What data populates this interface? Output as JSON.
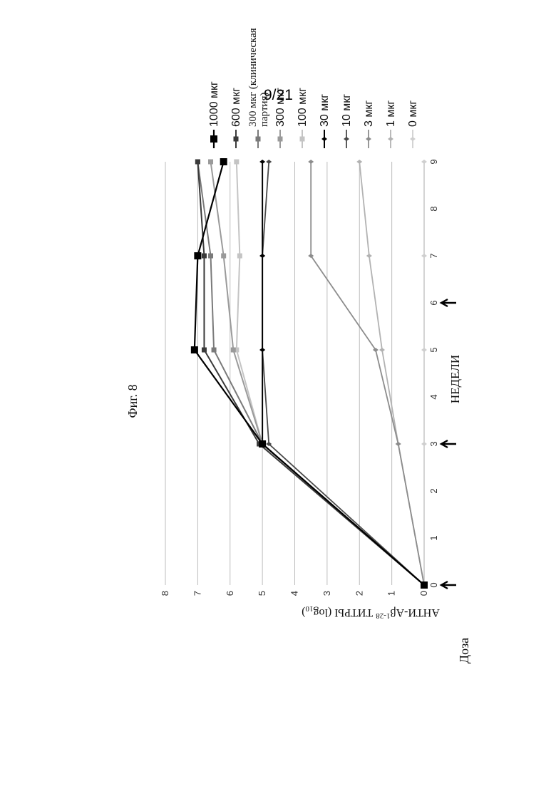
{
  "page": {
    "number": "9/21",
    "figure_caption": "Фиг. 8",
    "dose_label": "Доза"
  },
  "chart_data": {
    "type": "line",
    "title": "",
    "xlabel": "НЕДЕЛИ",
    "ylabel": "АНТИ-Aβ 1-28 ТИТРЫ (log10)",
    "ylabel_parts": {
      "main": "АНТИ-Aβ",
      "sup": "1-28",
      "tail": " ТИТРЫ (log",
      "sub": "10",
      "close": ")"
    },
    "xlim": [
      0,
      9
    ],
    "ylim": [
      0,
      8
    ],
    "x_ticks": [
      "0",
      "1",
      "2",
      "3",
      "4",
      "5",
      "6",
      "7",
      "8",
      "9"
    ],
    "y_ticks": [
      "0",
      "1",
      "2",
      "3",
      "4",
      "5",
      "6",
      "7",
      "8"
    ],
    "grid": "horizontal",
    "dose_weeks": [
      0,
      3,
      6
    ],
    "legend_position": "right",
    "x": [
      0,
      3,
      5,
      7,
      9
    ],
    "series": [
      {
        "name": "1000 мкг",
        "values": [
          0,
          5.0,
          7.1,
          7.0,
          6.2
        ],
        "color": "#000000",
        "marker": "square",
        "size": 10,
        "width": 2.2,
        "big": true
      },
      {
        "name": "600 мкг",
        "values": [
          0,
          5.1,
          6.8,
          6.8,
          7.0
        ],
        "color": "#3a3a3a",
        "marker": "square",
        "size": 7,
        "width": 2.0,
        "big": true
      },
      {
        "name": "300 мкг (клиническая партия)",
        "values": [
          0,
          5.0,
          6.5,
          6.6,
          7.0
        ],
        "color": "#7a7a7a",
        "marker": "square",
        "size": 7,
        "width": 2.0,
        "big": false
      },
      {
        "name": "300 мкг",
        "values": [
          0,
          5.0,
          5.9,
          6.2,
          6.6
        ],
        "color": "#9a9a9a",
        "marker": "square",
        "size": 7,
        "width": 2.0,
        "big": true
      },
      {
        "name": "100 мкг",
        "values": [
          0,
          5.0,
          5.8,
          5.7,
          5.8
        ],
        "color": "#c4c4c4",
        "marker": "square",
        "size": 7,
        "width": 2.0,
        "big": true
      },
      {
        "name": "30 мкг",
        "values": [
          0,
          5.0,
          5.0,
          5.0,
          5.0
        ],
        "color": "#000000",
        "marker": "diamond",
        "size": 6,
        "width": 2.0,
        "big": true
      },
      {
        "name": "10 мкг",
        "values": [
          0,
          4.8,
          5.0,
          5.0,
          4.8
        ],
        "color": "#4a4a4a",
        "marker": "diamond",
        "size": 6,
        "width": 1.8,
        "big": true
      },
      {
        "name": "3 мкг",
        "values": [
          0,
          0.8,
          1.5,
          3.5,
          3.5
        ],
        "color": "#8c8c8c",
        "marker": "diamond",
        "size": 6,
        "width": 1.8,
        "big": true
      },
      {
        "name": "1 мкг",
        "values": [
          0,
          0.8,
          1.3,
          1.7,
          2.0
        ],
        "color": "#b2b2b2",
        "marker": "diamond",
        "size": 6,
        "width": 1.8,
        "big": true
      },
      {
        "name": "0 мкг",
        "values": [
          0,
          0,
          0,
          0,
          0
        ],
        "color": "#cfcfcf",
        "marker": "diamond",
        "size": 6,
        "width": 1.8,
        "big": true
      }
    ]
  }
}
